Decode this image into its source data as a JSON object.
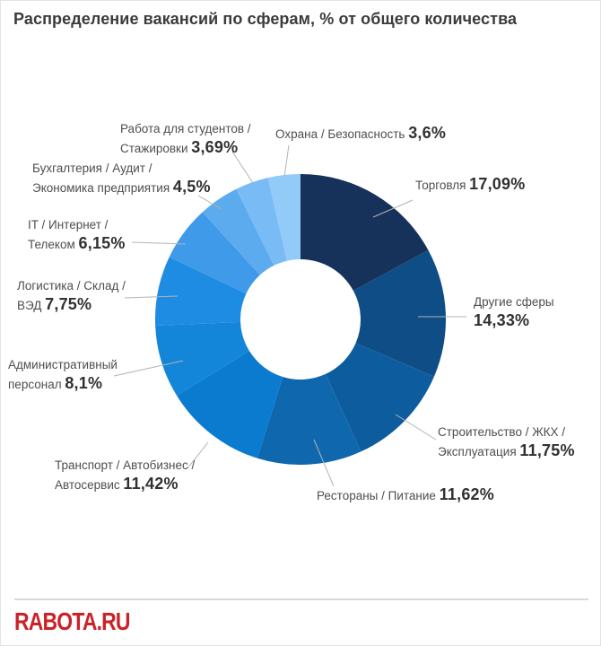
{
  "page": {
    "title": "Распределение вакансий по сферам, % от общего количества",
    "logo_text": "RABOTA.RU",
    "logo_color": "#cc2127"
  },
  "chart_data": {
    "type": "pie",
    "subtype": "donut",
    "title": "Распределение вакансий по сферам, % от общего количества",
    "units": "% от общего количества",
    "start_angle": "top",
    "direction": "clockwise",
    "legend": "callout-labels-with-leader-lines",
    "total": 100,
    "segments": [
      {
        "id": "trade",
        "label": "Торговля",
        "name_text": "Торговля ",
        "value": 17.09,
        "display": "17,09%",
        "color": "#17325a"
      },
      {
        "id": "others",
        "label": "Другие сферы",
        "name_text": "Другие сферы\n",
        "value": 14.33,
        "display": "14,33%",
        "color": "#0e4d85"
      },
      {
        "id": "construction",
        "label": "Строительство / ЖКХ / Эксплуатация",
        "name_text": "Строительство / ЖКХ /\nЭксплуатация ",
        "value": 11.75,
        "display": "11,75%",
        "color": "#0d5d9e"
      },
      {
        "id": "restaurants",
        "label": "Рестораны / Питание",
        "name_text": "Рестораны / Питание ",
        "value": 11.62,
        "display": "11,62%",
        "color": "#0f68ad"
      },
      {
        "id": "transport",
        "label": "Транспорт / Автобизнес / Автосервис",
        "name_text": "Транспорт / Автобизнес /\nАвтосервис ",
        "value": 11.42,
        "display": "11,42%",
        "color": "#0b7bd0"
      },
      {
        "id": "admin",
        "label": "Административный персонал",
        "name_text": "Административный\nперсонал ",
        "value": 8.1,
        "display": "8,1%",
        "color": "#1486d9"
      },
      {
        "id": "logistics",
        "label": "Логистика / Склад / ВЭД",
        "name_text": "Логистика / Склад /\nВЭД ",
        "value": 7.75,
        "display": "7,75%",
        "color": "#1f8ce3"
      },
      {
        "id": "it",
        "label": "IT / Интернет / Телеком",
        "name_text": "IT / Интернет /\nТелеком ",
        "value": 6.15,
        "display": "6,15%",
        "color": "#3f9ae9"
      },
      {
        "id": "accounting",
        "label": "Бухгалтерия / Аудит / Экономика предприятия",
        "name_text": "Бухгалтерия / Аудит /\nЭкономика предприятия ",
        "value": 4.5,
        "display": "4,5%",
        "color": "#5cabef"
      },
      {
        "id": "students",
        "label": "Работа для студентов / Стажировки",
        "name_text": "Работа для студентов /\nСтажировки ",
        "value": 3.69,
        "display": "3,69%",
        "color": "#79bbf4"
      },
      {
        "id": "security",
        "label": "Охрана / Безопасность",
        "name_text": "Охрана / Безопасность ",
        "value": 3.6,
        "display": "3,6%",
        "color": "#93cbf8"
      }
    ]
  }
}
